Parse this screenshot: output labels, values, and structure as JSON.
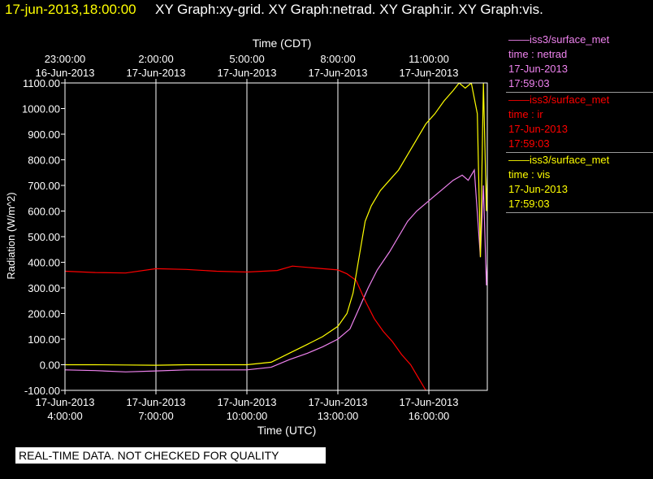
{
  "header": {
    "datetime": "17-jun-2013,18:00:00",
    "titles": "XY Graph:xy-grid.  XY Graph:netrad.  XY Graph:ir.  XY Graph:vis."
  },
  "notice": "REAL-TIME DATA. NOT CHECKED FOR QUALITY",
  "legend": [
    {
      "source": "iss3/surface_met",
      "var": "time : netrad",
      "date": "17-Jun-2013",
      "time": "17:59:03",
      "color": "#ee82ee"
    },
    {
      "source": "iss3/surface_met",
      "var": "time : ir",
      "date": "17-Jun-2013",
      "time": "17:59:03",
      "color": "#ff0000"
    },
    {
      "source": "iss3/surface_met",
      "var": "time : vis",
      "date": "17-Jun-2013",
      "time": "17:59:03",
      "color": "#ffff00"
    }
  ],
  "chart_data": {
    "type": "line",
    "ylabel": "Radiation (W/m^2)",
    "xlabel_bottom": "Time (UTC)",
    "xlabel_top": "Time (CDT)",
    "x_unit": "hours UTC, 17-Jun-2013",
    "xlim": [
      4.0,
      18.0
    ],
    "ylim": [
      -100,
      1100
    ],
    "grid": true,
    "y_ticks": [
      "-100.00",
      "0.00",
      "100.00",
      "200.00",
      "300.00",
      "400.00",
      "500.00",
      "600.00",
      "700.00",
      "800.00",
      "900.00",
      "1000.00",
      "1100.00"
    ],
    "bottom_ticks": [
      {
        "date": "17-Jun-2013",
        "time": "4:00:00"
      },
      {
        "date": "17-Jun-2013",
        "time": "7:00:00"
      },
      {
        "date": "17-Jun-2013",
        "time": "10:00:00"
      },
      {
        "date": "17-Jun-2013",
        "time": "13:00:00"
      },
      {
        "date": "17-Jun-2013",
        "time": "16:00:00"
      }
    ],
    "top_ticks": [
      {
        "time": "23:00:00",
        "date": "16-Jun-2013"
      },
      {
        "time": "2:00:00",
        "date": "17-Jun-2013"
      },
      {
        "time": "5:00:00",
        "date": "17-Jun-2013"
      },
      {
        "time": "8:00:00",
        "date": "17-Jun-2013"
      },
      {
        "time": "11:00:00",
        "date": "17-Jun-2013"
      }
    ],
    "series": [
      {
        "name": "netrad",
        "color": "#ee82ee",
        "points": [
          [
            4.0,
            -20
          ],
          [
            5.0,
            -23
          ],
          [
            6.0,
            -28
          ],
          [
            7.0,
            -24
          ],
          [
            8.0,
            -20
          ],
          [
            9.0,
            -20
          ],
          [
            10.0,
            -20
          ],
          [
            10.8,
            -10
          ],
          [
            11.4,
            20
          ],
          [
            12.0,
            45
          ],
          [
            12.5,
            70
          ],
          [
            13.0,
            100
          ],
          [
            13.4,
            140
          ],
          [
            13.7,
            220
          ],
          [
            14.0,
            300
          ],
          [
            14.3,
            370
          ],
          [
            14.7,
            440
          ],
          [
            15.0,
            500
          ],
          [
            15.3,
            560
          ],
          [
            15.6,
            600
          ],
          [
            15.9,
            630
          ],
          [
            16.2,
            660
          ],
          [
            16.5,
            690
          ],
          [
            16.8,
            720
          ],
          [
            17.1,
            740
          ],
          [
            17.3,
            720
          ],
          [
            17.5,
            760
          ],
          [
            17.7,
            420
          ],
          [
            17.8,
            700
          ],
          [
            17.9,
            310
          ],
          [
            18.0,
            580
          ]
        ]
      },
      {
        "name": "ir",
        "color": "#ff0000",
        "points": [
          [
            4.0,
            365
          ],
          [
            5.0,
            360
          ],
          [
            6.0,
            358
          ],
          [
            7.0,
            375
          ],
          [
            8.0,
            372
          ],
          [
            9.0,
            365
          ],
          [
            10.0,
            362
          ],
          [
            11.0,
            368
          ],
          [
            11.5,
            385
          ],
          [
            12.0,
            380
          ],
          [
            12.5,
            375
          ],
          [
            13.0,
            370
          ],
          [
            13.3,
            355
          ],
          [
            13.6,
            330
          ],
          [
            13.9,
            250
          ],
          [
            14.2,
            180
          ],
          [
            14.5,
            130
          ],
          [
            14.8,
            90
          ],
          [
            15.1,
            40
          ],
          [
            15.4,
            0
          ],
          [
            15.7,
            -60
          ],
          [
            15.9,
            -100
          ]
        ]
      },
      {
        "name": "vis",
        "color": "#ffff00",
        "points": [
          [
            4.0,
            0
          ],
          [
            5.0,
            0
          ],
          [
            6.0,
            -1
          ],
          [
            7.0,
            -2
          ],
          [
            8.0,
            0
          ],
          [
            9.0,
            0
          ],
          [
            10.0,
            0
          ],
          [
            10.8,
            10
          ],
          [
            11.4,
            45
          ],
          [
            12.0,
            80
          ],
          [
            12.5,
            110
          ],
          [
            13.0,
            150
          ],
          [
            13.3,
            200
          ],
          [
            13.5,
            280
          ],
          [
            13.7,
            420
          ],
          [
            13.9,
            560
          ],
          [
            14.1,
            620
          ],
          [
            14.4,
            680
          ],
          [
            14.7,
            720
          ],
          [
            15.0,
            760
          ],
          [
            15.3,
            820
          ],
          [
            15.6,
            880
          ],
          [
            15.9,
            940
          ],
          [
            16.2,
            980
          ],
          [
            16.5,
            1030
          ],
          [
            16.8,
            1070
          ],
          [
            17.0,
            1100
          ],
          [
            17.2,
            1080
          ],
          [
            17.4,
            1100
          ],
          [
            17.6,
            980
          ],
          [
            17.7,
            420
          ],
          [
            17.8,
            1100
          ],
          [
            17.9,
            600
          ],
          [
            18.0,
            1050
          ]
        ]
      }
    ]
  }
}
